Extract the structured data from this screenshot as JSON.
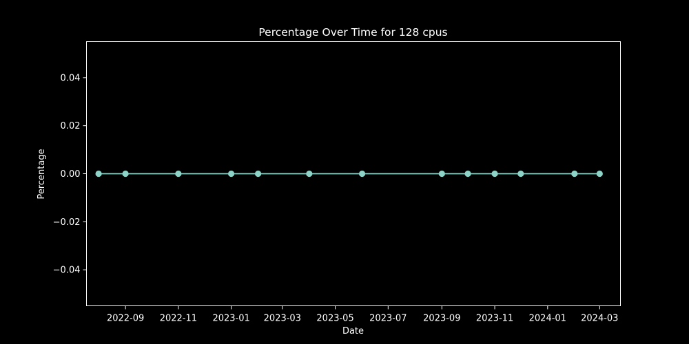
{
  "chart_data": {
    "type": "line",
    "title": "Percentage Over Time for 128 cpus",
    "xlabel": "Date",
    "ylabel": "Percentage",
    "x_ticks": [
      "2022-09",
      "2022-11",
      "2023-01",
      "2023-03",
      "2023-05",
      "2023-07",
      "2023-09",
      "2023-11",
      "2024-01",
      "2024-03"
    ],
    "y_ticks": [
      "−0.04",
      "−0.02",
      "0.00",
      "0.02",
      "0.04"
    ],
    "y_tick_values": [
      -0.04,
      -0.02,
      0.0,
      0.02,
      0.04
    ],
    "xlim": [
      "2022-07-18",
      "2024-03-25"
    ],
    "ylim": [
      -0.055,
      0.055
    ],
    "grid": false,
    "legend": "none",
    "series": [
      {
        "x": [
          "2022-08-01",
          "2022-09-01",
          "2022-11-01",
          "2023-01-01",
          "2023-02-01",
          "2023-04-01",
          "2023-06-01",
          "2023-09-01",
          "2023-10-01",
          "2023-11-01",
          "2023-12-01",
          "2024-02-01",
          "2024-03-01"
        ],
        "values": [
          0,
          0,
          0,
          0,
          0,
          0,
          0,
          0,
          0,
          0,
          0,
          0,
          0
        ],
        "color": "#8dd3c7",
        "marker": "circle"
      }
    ],
    "colors": {
      "background": "#000000",
      "foreground": "#ffffff",
      "series": "#8dd3c7"
    }
  }
}
